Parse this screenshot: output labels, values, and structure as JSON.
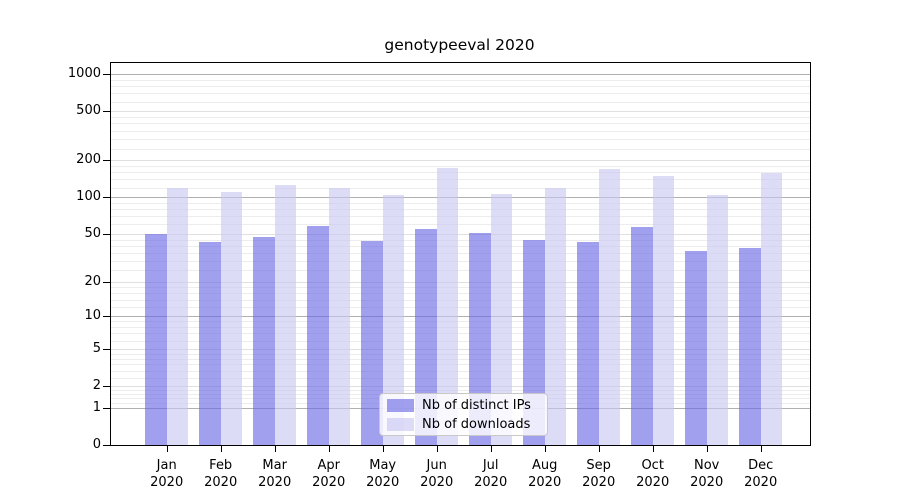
{
  "page": {
    "background": "#ffffff"
  },
  "chart_data": {
    "type": "bar",
    "title": "genotypeeval 2020",
    "categories": [
      "Jan 2020",
      "Feb 2020",
      "Mar 2020",
      "Apr 2020",
      "May 2020",
      "Jun 2020",
      "Jul 2020",
      "Aug 2020",
      "Sep 2020",
      "Oct 2020",
      "Nov 2020",
      "Dec 2020"
    ],
    "series": [
      {
        "name": "Nb of distinct IPs",
        "fill": "rgba(103,101,227,0.62)",
        "composite_hex": "#a1a0ee",
        "values": [
          50,
          43,
          47,
          58,
          44,
          55,
          51,
          45,
          43,
          57,
          36,
          38
        ]
      },
      {
        "name": "Nb of downloads",
        "fill": "rgba(199,198,242,0.62)",
        "composite_hex": "#dcdcf8",
        "values": [
          119,
          110,
          126,
          119,
          104,
          175,
          106,
          119,
          170,
          150,
          104,
          159
        ]
      }
    ],
    "yscale": "log1p",
    "yticks": [
      0,
      1,
      2,
      5,
      10,
      20,
      50,
      100,
      200,
      500,
      1000
    ],
    "ytick_labels": [
      "0",
      "1",
      "2",
      "5",
      "10",
      "20",
      "50",
      "100",
      "200",
      "500",
      "1000"
    ],
    "ylim": [
      0,
      1234
    ],
    "grid": true,
    "legend_position": "lower center",
    "colors": {
      "major_grid": "#b0b0b0",
      "mid_grid": "#e0e0e0",
      "minor_grid": "#ededed",
      "axis": "#000000",
      "legend_border": "#c8c8c8",
      "text": "#000000"
    }
  }
}
